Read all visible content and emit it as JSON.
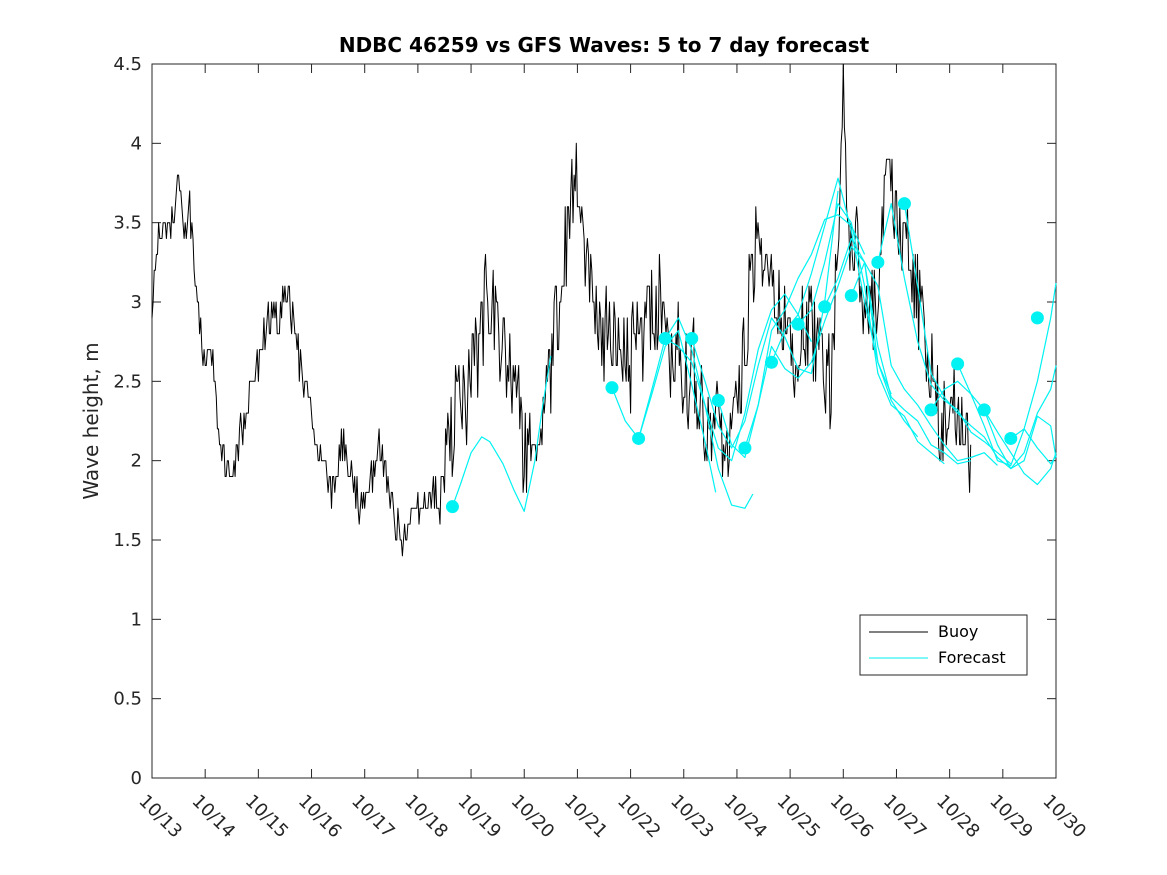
{
  "chart_data": {
    "type": "line",
    "title": "NDBC 46259 vs GFS Waves: 5 to 7 day forecast",
    "xlabel": "",
    "ylabel": "Wave height, m",
    "xlim": [
      0,
      17
    ],
    "ylim": [
      0,
      4.5
    ],
    "x_tick_labels": [
      "10/13",
      "10/14",
      "10/15",
      "10/16",
      "10/17",
      "10/18",
      "10/19",
      "10/20",
      "10/21",
      "10/22",
      "10/23",
      "10/24",
      "10/25",
      "10/26",
      "10/27",
      "10/28",
      "10/29",
      "10/30"
    ],
    "y_tick_labels": [
      "0",
      "0.5",
      "1",
      "1.5",
      "2",
      "2.5",
      "3",
      "3.5",
      "4",
      "4.5"
    ],
    "legend": {
      "position": "lower-right",
      "entries": [
        "Buoy",
        "Forecast"
      ]
    },
    "colors": {
      "buoy": "#000000",
      "forecast": "#00f2f2",
      "axis": "#262626"
    },
    "buoy_anchors": [
      [
        0,
        2.8
      ],
      [
        0.05,
        3.2
      ],
      [
        0.15,
        3.5
      ],
      [
        0.3,
        3.4
      ],
      [
        0.45,
        3.6
      ],
      [
        0.5,
        3.8
      ],
      [
        0.6,
        3.4
      ],
      [
        0.7,
        3.6
      ],
      [
        0.8,
        3.2
      ],
      [
        0.9,
        2.8
      ],
      [
        1.0,
        2.6
      ],
      [
        1.1,
        2.8
      ],
      [
        1.2,
        2.4
      ],
      [
        1.3,
        2.1
      ],
      [
        1.4,
        1.9
      ],
      [
        1.5,
        2.0
      ],
      [
        1.6,
        2.1
      ],
      [
        1.7,
        2.2
      ],
      [
        1.8,
        2.4
      ],
      [
        1.9,
        2.5
      ],
      [
        2.0,
        2.6
      ],
      [
        2.1,
        2.8
      ],
      [
        2.2,
        2.9
      ],
      [
        2.3,
        3.0
      ],
      [
        2.4,
        2.9
      ],
      [
        2.5,
        3.1
      ],
      [
        2.6,
        3.0
      ],
      [
        2.7,
        2.8
      ],
      [
        2.8,
        2.6
      ],
      [
        2.9,
        2.4
      ],
      [
        3.0,
        2.2
      ],
      [
        3.1,
        2.1
      ],
      [
        3.2,
        2.0
      ],
      [
        3.3,
        1.9
      ],
      [
        3.4,
        1.8
      ],
      [
        3.5,
        2.0
      ],
      [
        3.6,
        2.1
      ],
      [
        3.7,
        2.0
      ],
      [
        3.8,
        1.8
      ],
      [
        3.9,
        1.7
      ],
      [
        4.0,
        1.8
      ],
      [
        4.1,
        1.9
      ],
      [
        4.2,
        2.0
      ],
      [
        4.3,
        2.1
      ],
      [
        4.4,
        1.9
      ],
      [
        4.5,
        1.8
      ],
      [
        4.6,
        1.6
      ],
      [
        4.7,
        1.5
      ],
      [
        4.8,
        1.55
      ],
      [
        4.9,
        1.6
      ],
      [
        5.0,
        1.65
      ],
      [
        5.1,
        1.7
      ],
      [
        5.2,
        1.75
      ],
      [
        5.3,
        1.8
      ],
      [
        5.4,
        1.7
      ],
      [
        5.5,
        1.9
      ],
      [
        5.6,
        2.1
      ],
      [
        5.7,
        2.3
      ],
      [
        5.8,
        2.4
      ],
      [
        5.9,
        2.3
      ],
      [
        6.0,
        2.5
      ],
      [
        6.1,
        2.6
      ],
      [
        6.2,
        2.8
      ],
      [
        6.3,
        3.1
      ],
      [
        6.4,
        2.9
      ],
      [
        6.5,
        2.7
      ],
      [
        6.6,
        2.8
      ],
      [
        6.7,
        2.6
      ],
      [
        6.8,
        2.4
      ],
      [
        6.9,
        2.3
      ],
      [
        7.0,
        2.1
      ],
      [
        7.1,
        2.0
      ],
      [
        7.2,
        1.9
      ],
      [
        7.3,
        2.1
      ],
      [
        7.4,
        2.3
      ],
      [
        7.5,
        2.6
      ],
      [
        7.6,
        2.9
      ],
      [
        7.7,
        3.1
      ],
      [
        7.8,
        3.4
      ],
      [
        7.9,
        3.6
      ],
      [
        8.0,
        3.8
      ],
      [
        8.1,
        3.5
      ],
      [
        8.2,
        3.3
      ],
      [
        8.3,
        3.1
      ],
      [
        8.4,
        2.9
      ],
      [
        8.5,
        2.8
      ],
      [
        8.6,
        3.0
      ],
      [
        8.7,
        2.7
      ],
      [
        8.8,
        2.6
      ],
      [
        8.9,
        2.7
      ],
      [
        9.0,
        2.6
      ],
      [
        9.1,
        2.8
      ],
      [
        9.2,
        2.7
      ],
      [
        9.3,
        2.9
      ],
      [
        9.4,
        3.0
      ],
      [
        9.5,
        2.9
      ],
      [
        9.6,
        3.1
      ],
      [
        9.7,
        2.8
      ],
      [
        9.8,
        2.7
      ],
      [
        9.9,
        2.8
      ],
      [
        10.0,
        2.6
      ],
      [
        10.1,
        2.5
      ],
      [
        10.2,
        2.6
      ],
      [
        10.3,
        2.4
      ],
      [
        10.4,
        2.3
      ],
      [
        10.5,
        2.2
      ],
      [
        10.6,
        2.3
      ],
      [
        10.7,
        2.2
      ],
      [
        10.8,
        2.1
      ],
      [
        10.9,
        2.2
      ],
      [
        11.0,
        2.3
      ],
      [
        11.1,
        2.5
      ],
      [
        11.2,
        2.9
      ],
      [
        11.3,
        3.3
      ],
      [
        11.4,
        3.6
      ],
      [
        11.5,
        3.4
      ],
      [
        11.6,
        3.3
      ],
      [
        11.7,
        3.1
      ],
      [
        11.8,
        3.0
      ],
      [
        11.9,
        2.8
      ],
      [
        12.0,
        2.9
      ],
      [
        12.1,
        2.6
      ],
      [
        12.2,
        2.7
      ],
      [
        12.3,
        2.9
      ],
      [
        12.4,
        2.8
      ],
      [
        12.5,
        2.7
      ],
      [
        12.6,
        2.6
      ],
      [
        12.7,
        2.5
      ],
      [
        12.8,
        2.6
      ],
      [
        12.9,
        3.4
      ],
      [
        13.0,
        4.4
      ],
      [
        13.05,
        3.9
      ],
      [
        13.1,
        3.3
      ],
      [
        13.2,
        3.5
      ],
      [
        13.3,
        3.2
      ],
      [
        13.4,
        3.0
      ],
      [
        13.5,
        2.8
      ],
      [
        13.6,
        3.0
      ],
      [
        13.7,
        3.4
      ],
      [
        13.8,
        3.6
      ],
      [
        13.9,
        3.7
      ],
      [
        14.0,
        3.6
      ],
      [
        14.1,
        3.4
      ],
      [
        14.2,
        3.3
      ],
      [
        14.3,
        3.2
      ],
      [
        14.4,
        3.0
      ],
      [
        14.5,
        2.8
      ],
      [
        14.6,
        2.6
      ],
      [
        14.7,
        2.4
      ],
      [
        14.8,
        2.3
      ],
      [
        14.9,
        2.2
      ],
      [
        15.0,
        2.3
      ],
      [
        15.1,
        2.4
      ],
      [
        15.2,
        2.2
      ],
      [
        15.3,
        2.1
      ],
      [
        15.4,
        2.05
      ]
    ],
    "forecast_series": [
      {
        "name": "fc1",
        "x": [
          5.65,
          5.8,
          6.0,
          6.2,
          6.35,
          6.6,
          6.8,
          7.0,
          7.2,
          7.35,
          7.5
        ],
        "y": [
          1.71,
          1.85,
          2.05,
          2.15,
          2.12,
          1.98,
          1.82,
          1.68,
          2.0,
          2.35,
          2.66
        ]
      },
      {
        "name": "fc2",
        "x": [
          8.65,
          8.9,
          9.15,
          9.4,
          9.65,
          9.9,
          10.15,
          10.4,
          10.6
        ],
        "y": [
          2.46,
          2.25,
          2.14,
          2.42,
          2.72,
          2.82,
          2.48,
          2.12,
          1.8
        ]
      },
      {
        "name": "fc3",
        "x": [
          9.15,
          9.4,
          9.65,
          9.9,
          10.15,
          10.4,
          10.65,
          10.9,
          11.15,
          11.3
        ],
        "y": [
          2.14,
          2.45,
          2.77,
          2.9,
          2.7,
          2.35,
          1.95,
          1.72,
          1.7,
          1.79
        ]
      },
      {
        "name": "fc4",
        "x": [
          9.65,
          9.9,
          10.15,
          10.4,
          10.65,
          10.9,
          11.15,
          11.4,
          11.65,
          11.9,
          12.15,
          12.4
        ],
        "y": [
          2.77,
          2.72,
          2.62,
          2.35,
          2.08,
          2.0,
          2.3,
          2.7,
          2.95,
          3.05,
          2.92,
          2.75
        ]
      },
      {
        "name": "fc5",
        "x": [
          10.15,
          10.4,
          10.65,
          10.9,
          11.15,
          11.4,
          11.65,
          11.9,
          12.15,
          12.4,
          12.65,
          12.9
        ],
        "y": [
          2.77,
          2.5,
          2.22,
          2.08,
          2.25,
          2.6,
          2.9,
          2.78,
          2.58,
          2.55,
          3.0,
          3.7
        ]
      },
      {
        "name": "fc6",
        "x": [
          10.65,
          10.9,
          11.15,
          11.4,
          11.65,
          11.9,
          12.15,
          12.4,
          12.65,
          12.9,
          13.15,
          13.4
        ],
        "y": [
          2.38,
          2.1,
          2.02,
          2.35,
          2.82,
          2.95,
          3.15,
          3.3,
          3.52,
          3.55,
          3.48,
          3.3
        ]
      },
      {
        "name": "fc7",
        "x": [
          11.15,
          11.4,
          11.65,
          11.9,
          12.15,
          12.4,
          12.65,
          12.9,
          13.15,
          13.4,
          13.65,
          13.9
        ],
        "y": [
          2.08,
          2.35,
          2.72,
          2.58,
          2.52,
          2.62,
          2.88,
          3.1,
          3.35,
          3.25,
          2.62,
          2.42
        ]
      },
      {
        "name": "fc8",
        "x": [
          11.65,
          11.9,
          12.15,
          12.4,
          12.65,
          12.9,
          13.15,
          13.4,
          13.65,
          13.9,
          14.15,
          14.4
        ],
        "y": [
          2.62,
          2.82,
          2.92,
          3.18,
          3.48,
          3.78,
          3.45,
          3.0,
          2.62,
          2.38,
          2.25,
          2.15
        ]
      },
      {
        "name": "fc9",
        "x": [
          12.15,
          12.4,
          12.65,
          12.9,
          13.15,
          13.4,
          13.65,
          13.9,
          14.15,
          14.4,
          14.65,
          14.9
        ],
        "y": [
          2.86,
          2.95,
          3.25,
          3.62,
          3.5,
          3.1,
          2.55,
          2.35,
          2.28,
          2.12,
          2.05,
          1.98
        ]
      },
      {
        "name": "fc10",
        "x": [
          12.65,
          12.9,
          13.15,
          13.4,
          13.65,
          13.9,
          14.15,
          14.4,
          14.65,
          14.9,
          15.15,
          15.4
        ],
        "y": [
          2.97,
          3.15,
          3.4,
          3.25,
          2.72,
          2.4,
          2.32,
          2.25,
          2.1,
          2.05,
          1.98,
          2.0
        ]
      },
      {
        "name": "fc11",
        "x": [
          13.15,
          13.4,
          13.65,
          13.9,
          14.15,
          14.4,
          14.65,
          14.9,
          15.15,
          15.4,
          15.65,
          15.9
        ],
        "y": [
          3.04,
          3.25,
          3.1,
          2.6,
          2.45,
          2.35,
          2.22,
          2.1,
          2.0,
          2.02,
          2.05,
          1.97
        ]
      },
      {
        "name": "fc12",
        "x": [
          13.65,
          13.9,
          14.15,
          14.4,
          14.65,
          14.9,
          15.15,
          15.4,
          15.65,
          15.9,
          16.15
        ],
        "y": [
          3.25,
          3.62,
          3.15,
          2.75,
          2.48,
          2.38,
          2.32,
          2.18,
          2.12,
          2.05,
          1.98
        ]
      },
      {
        "name": "fc13",
        "x": [
          14.15,
          14.4,
          14.65,
          14.9,
          15.15,
          15.4,
          15.65,
          15.9,
          16.15,
          16.4,
          16.65,
          16.9,
          17.0
        ],
        "y": [
          3.62,
          3.1,
          2.55,
          2.4,
          2.3,
          2.22,
          2.15,
          2.02,
          1.95,
          2.05,
          2.3,
          2.45,
          2.6
        ]
      },
      {
        "name": "fc14",
        "x": [
          14.65,
          14.9,
          15.15,
          15.4,
          15.65,
          15.9,
          16.15,
          16.4,
          16.65,
          16.9,
          17.0
        ],
        "y": [
          2.32,
          2.45,
          2.5,
          2.42,
          2.32,
          2.1,
          1.95,
          2.0,
          2.28,
          2.22,
          2.02
        ]
      },
      {
        "name": "fc15",
        "x": [
          15.15,
          15.4,
          15.65,
          15.9,
          16.15,
          16.4,
          16.65,
          16.9,
          17.0
        ],
        "y": [
          2.61,
          2.42,
          2.22,
          2.0,
          1.97,
          2.2,
          2.5,
          2.9,
          3.12
        ]
      },
      {
        "name": "fc16",
        "x": [
          15.65,
          15.9,
          16.15,
          16.4,
          16.65,
          16.9,
          17.0
        ],
        "y": [
          2.32,
          2.18,
          2.05,
          1.92,
          1.85,
          1.95,
          2.05
        ]
      },
      {
        "name": "fc17",
        "x": [
          16.15,
          16.4,
          16.65,
          16.9,
          17.0
        ],
        "y": [
          2.14,
          2.2,
          2.08,
          1.98,
          2.03
        ]
      }
    ],
    "forecast_markers": [
      {
        "x": 5.65,
        "y": 1.71
      },
      {
        "x": 8.65,
        "y": 2.46
      },
      {
        "x": 9.15,
        "y": 2.14
      },
      {
        "x": 9.65,
        "y": 2.77
      },
      {
        "x": 10.15,
        "y": 2.77
      },
      {
        "x": 10.65,
        "y": 2.38
      },
      {
        "x": 11.15,
        "y": 2.08
      },
      {
        "x": 11.65,
        "y": 2.62
      },
      {
        "x": 12.15,
        "y": 2.86
      },
      {
        "x": 12.65,
        "y": 2.97
      },
      {
        "x": 13.15,
        "y": 3.04
      },
      {
        "x": 13.65,
        "y": 3.25
      },
      {
        "x": 14.15,
        "y": 3.62
      },
      {
        "x": 14.65,
        "y": 2.32
      },
      {
        "x": 15.15,
        "y": 2.61
      },
      {
        "x": 15.65,
        "y": 2.32
      },
      {
        "x": 16.15,
        "y": 2.14
      },
      {
        "x": 16.65,
        "y": 2.9
      }
    ]
  }
}
